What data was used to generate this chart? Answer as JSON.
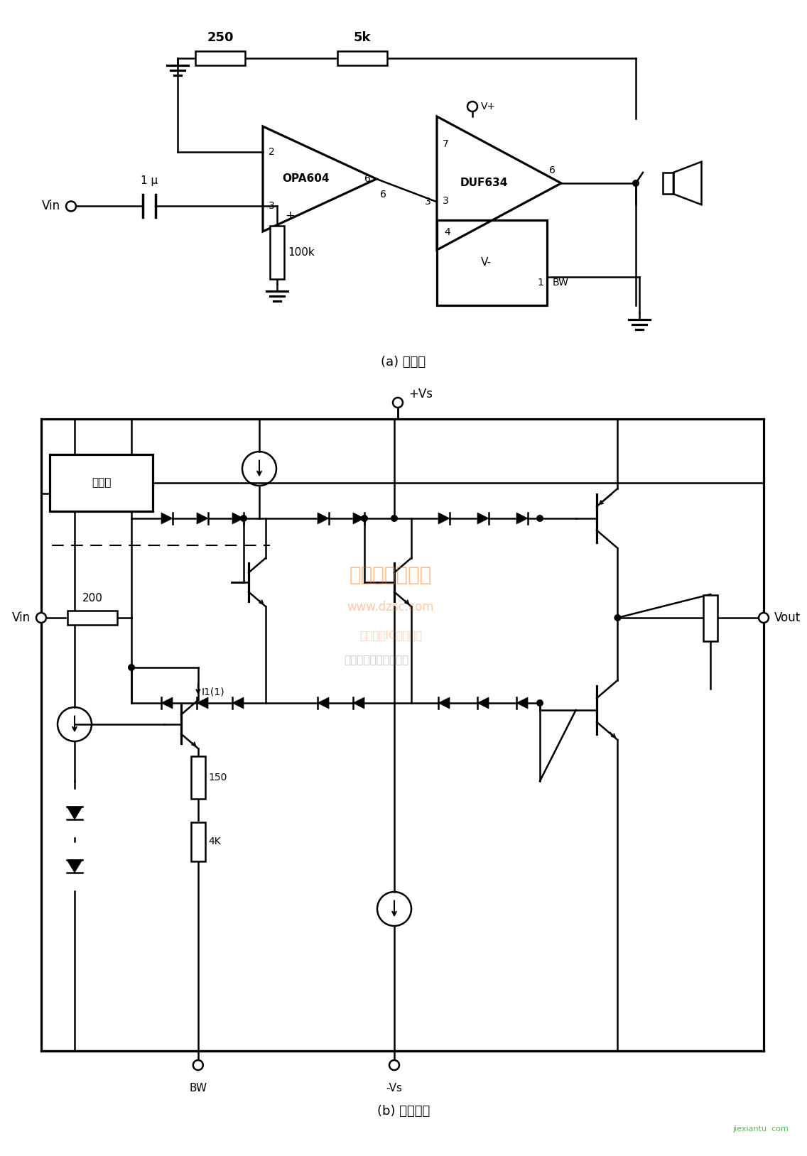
{
  "bg_color": "#ffffff",
  "lw": 1.8,
  "title_a": "(a) 原理图",
  "title_b": "(b) 内部结构",
  "label_vin": "Vin",
  "label_vout": "Vout",
  "label_250": "250",
  "label_5k": "5k",
  "label_1u": "1 μ",
  "label_100k": "100k",
  "label_opa604": "OPA604",
  "label_duf634": "DUF634",
  "label_vplus": "V+",
  "label_vminus": "V-",
  "label_bw": "BW",
  "label_200": "200",
  "label_150": "150",
  "label_4k": "4K",
  "label_i11": "I1(1)",
  "label_hot": "热关断",
  "label_vs_plus": "+Vs",
  "label_vs_minus": "-Vs",
  "pin2": "2",
  "pin3a": "3",
  "pin6o": "6",
  "pin3d": "3",
  "pin7": "7",
  "pin6d": "6",
  "pin4": "4",
  "pin1": "1"
}
